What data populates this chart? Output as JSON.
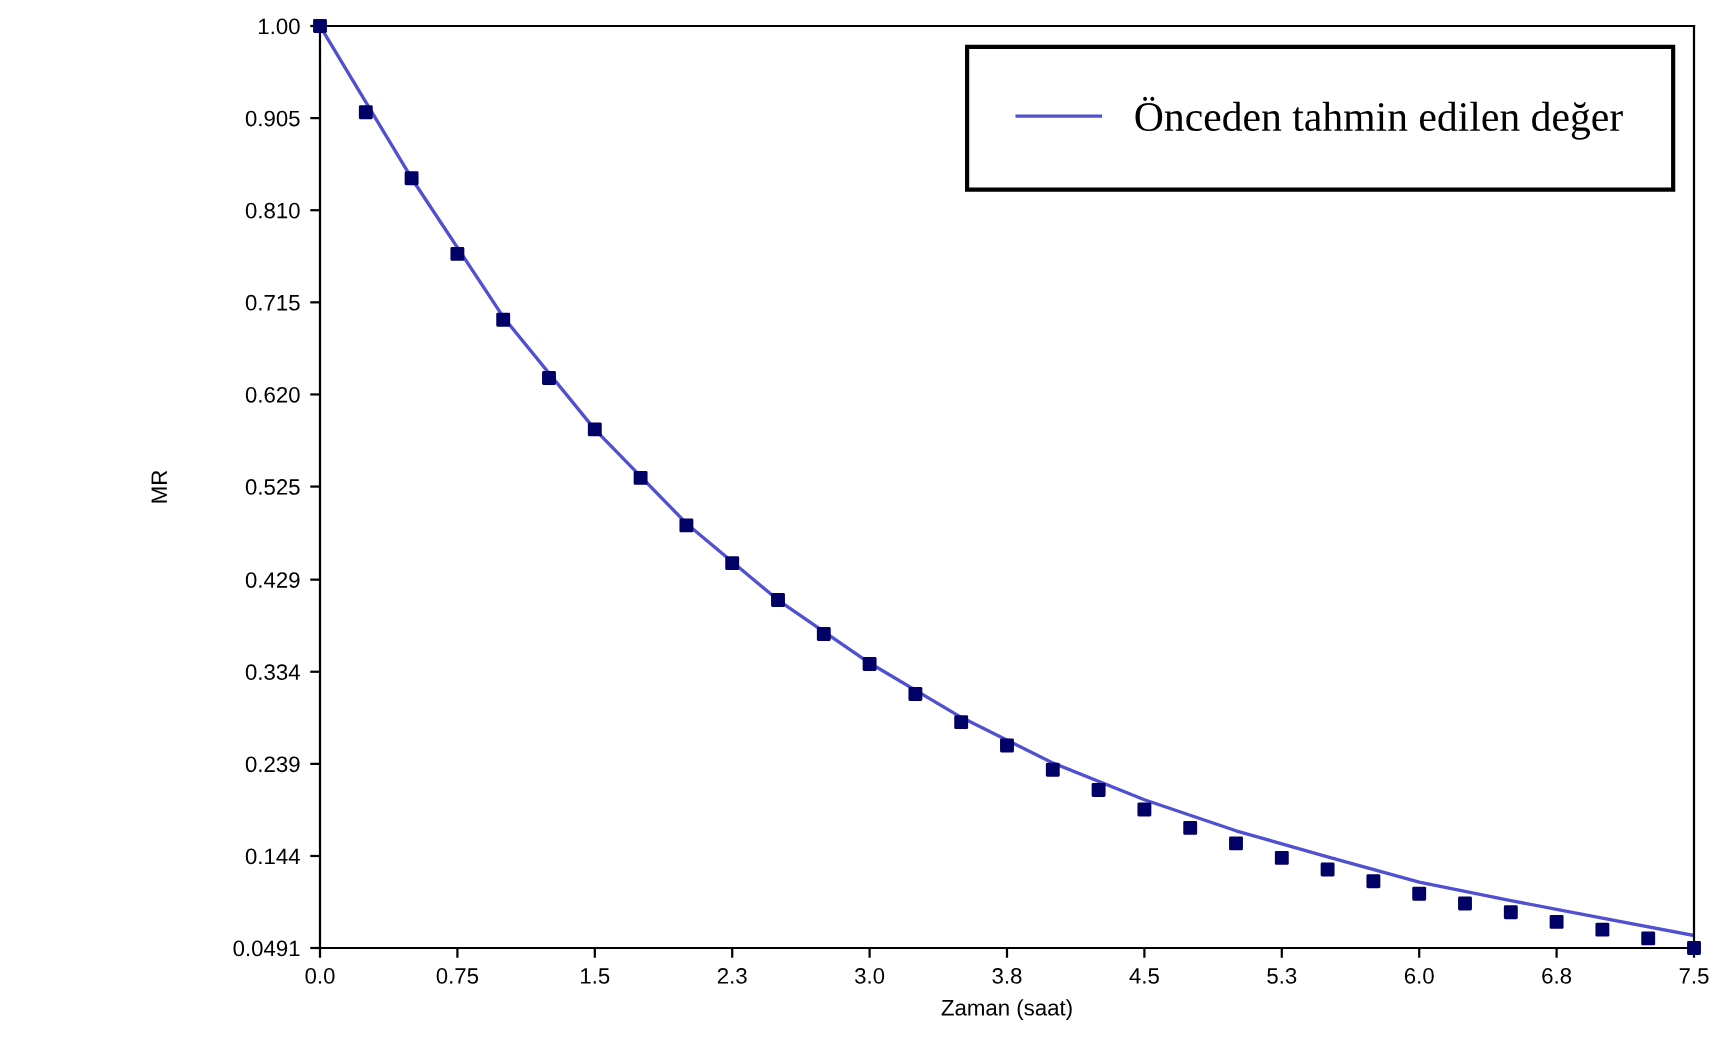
{
  "chart_data": {
    "type": "scatter",
    "xlabel": "Zaman (saat)",
    "ylabel": "MR",
    "xlim": [
      0,
      7.5
    ],
    "ylim": [
      0.0491,
      1.0
    ],
    "xticks": [
      {
        "value": 0,
        "label": "0.0"
      },
      0.75,
      1.5,
      {
        "value": 2.25,
        "label": "2.3"
      },
      {
        "value": 3,
        "label": "3.0"
      },
      {
        "value": 3.75,
        "label": "3.8"
      },
      4.5,
      {
        "value": 5.25,
        "label": "5.3"
      },
      {
        "value": 6,
        "label": "6.0"
      },
      {
        "value": 6.75,
        "label": "6.8"
      },
      7.5
    ],
    "yticks": [
      0.0491,
      0.144,
      0.239,
      0.334,
      0.429,
      0.525,
      {
        "value": 0.62,
        "label": "0.620"
      },
      0.715,
      {
        "value": 0.81,
        "label": "0.810"
      },
      0.905,
      {
        "value": 1.0,
        "label": "1.00"
      }
    ],
    "grid": false,
    "legend": "top right",
    "series": [
      {
        "color": "#000066",
        "marker": "square",
        "x": [
          0,
          0.25,
          0.5,
          0.75,
          1.0,
          1.25,
          1.5,
          1.75,
          2.0,
          2.25,
          2.5,
          2.75,
          3.0,
          3.25,
          3.5,
          3.75,
          4.0,
          4.25,
          4.5,
          4.75,
          5.0,
          5.25,
          5.5,
          5.75,
          6.0,
          6.25,
          6.5,
          6.75,
          7.0,
          7.25,
          7.5
        ],
        "values": [
          1.0,
          0.911,
          0.843,
          0.765,
          0.697,
          0.637,
          0.584,
          0.534,
          0.485,
          0.446,
          0.408,
          0.373,
          0.342,
          0.311,
          0.282,
          0.258,
          0.233,
          0.212,
          0.192,
          0.173,
          0.157,
          0.142,
          0.13,
          0.118,
          0.105,
          0.095,
          0.086,
          0.076,
          0.068,
          0.059,
          0.0491
        ]
      },
      {
        "type": "line",
        "name": "Önceden tahmin edilen değer",
        "color": "#5050d0",
        "line_style": "solid",
        "x": [
          0,
          0.5,
          1.0,
          1.5,
          2.0,
          2.5,
          3.0,
          3.5,
          4.0,
          4.5,
          5.0,
          5.5,
          6.0,
          6.5,
          7.0,
          7.5
        ],
        "values": [
          1.0,
          0.843,
          0.7,
          0.584,
          0.487,
          0.408,
          0.343,
          0.287,
          0.24,
          0.202,
          0.17,
          0.143,
          0.117,
          0.098,
          0.08,
          0.062
        ]
      }
    ]
  }
}
